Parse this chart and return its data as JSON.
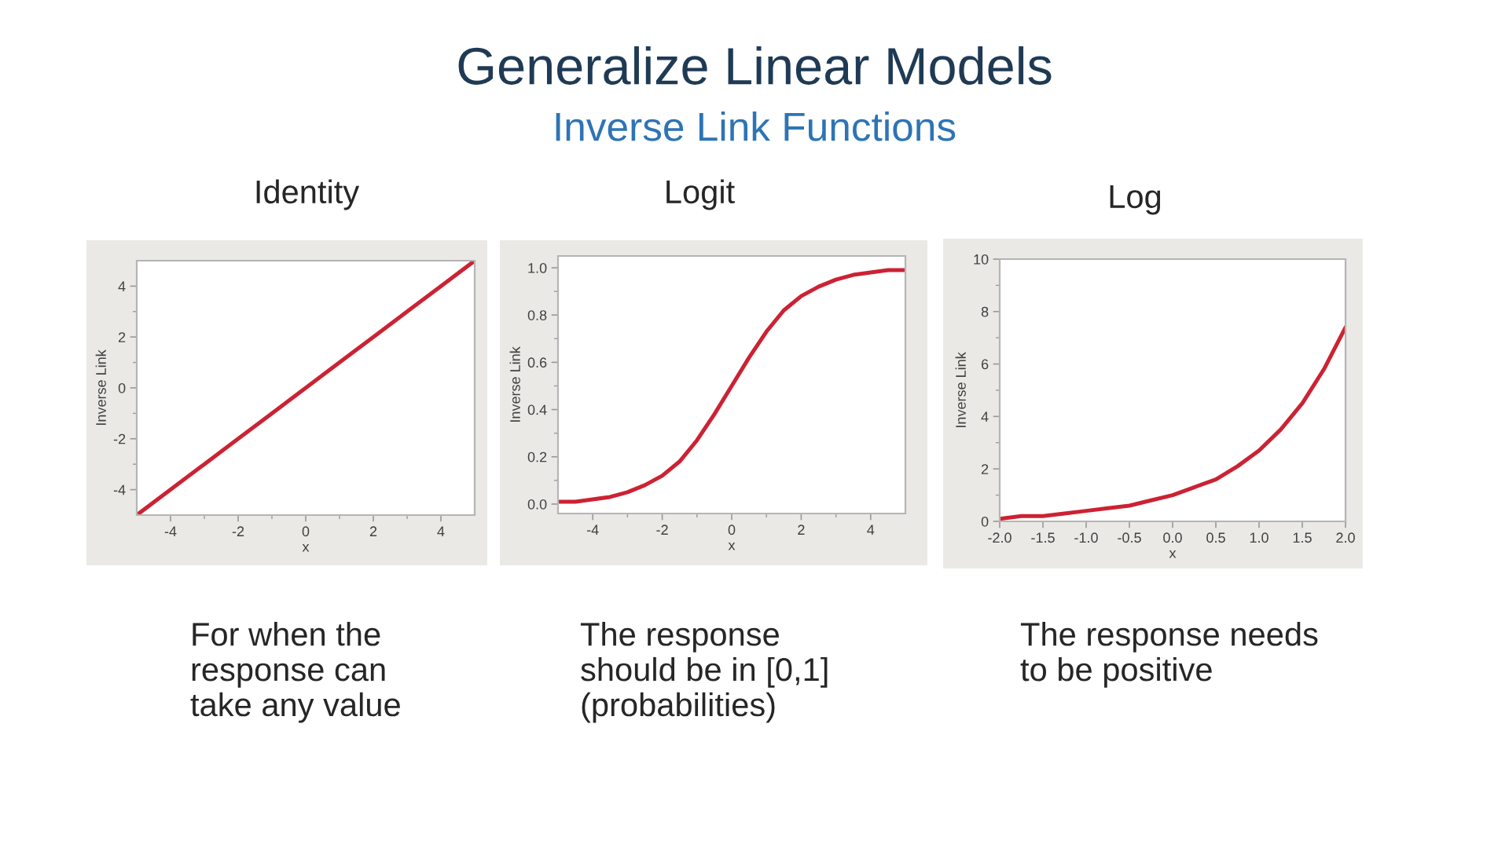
{
  "chart_data": [
    {
      "type": "other",
      "title": "Generalize Linear Models",
      "subtitle": "Inverse Link Functions"
    },
    {
      "type": "line",
      "title": "Identity",
      "xlabel": "x",
      "ylabel": "Inverse Link",
      "color": "#cc2233",
      "x": [
        -5,
        -4,
        -3,
        -2,
        -1,
        0,
        1,
        2,
        3,
        4,
        5
      ],
      "values": [
        -5,
        -4,
        -3,
        -2,
        -1,
        0,
        1,
        2,
        3,
        4,
        5
      ],
      "xlim": [
        -5,
        5
      ],
      "ylim": [
        -5,
        5
      ],
      "xticks": [
        -4,
        -2,
        0,
        2,
        4,
        {
          "value": -3,
          "label": null
        },
        {
          "value": -1,
          "label": null
        },
        {
          "value": 1,
          "label": null
        },
        {
          "value": 3,
          "label": null
        }
      ],
      "yticks": [
        -4,
        -2,
        0,
        2,
        4,
        {
          "value": -3,
          "label": null
        },
        {
          "value": -1,
          "label": null
        },
        {
          "value": 1,
          "label": null
        },
        {
          "value": 3,
          "label": null
        }
      ],
      "annotations": [
        "For when the\nresponse can\ntake any value"
      ]
    },
    {
      "type": "line",
      "title": "Logit",
      "xlabel": "x",
      "ylabel": "Inverse Link",
      "color": "#cc2233",
      "x": [
        -5,
        -4.5,
        -4,
        -3.5,
        -3,
        -2.5,
        -2,
        -1.5,
        -1,
        -0.5,
        0,
        0.5,
        1,
        1.5,
        2,
        2.5,
        3,
        3.5,
        4,
        4.5,
        5
      ],
      "values": [
        0.01,
        0.01,
        0.02,
        0.03,
        0.05,
        0.08,
        0.12,
        0.18,
        0.27,
        0.38,
        0.5,
        0.62,
        0.73,
        0.82,
        0.88,
        0.92,
        0.95,
        0.97,
        0.98,
        0.99,
        0.99
      ],
      "xlim": [
        -5,
        5
      ],
      "ylim": [
        -0.04,
        1.05
      ],
      "xticks": [
        -4,
        -2,
        0,
        2,
        4,
        {
          "value": -3,
          "label": null
        },
        {
          "value": -1,
          "label": null
        },
        {
          "value": 1,
          "label": null
        },
        {
          "value": 3,
          "label": null
        }
      ],
      "yticks": [
        {
          "value": 0,
          "label": "0.0"
        },
        0.2,
        0.4,
        0.6,
        0.8,
        {
          "value": 1,
          "label": "1.0"
        },
        {
          "value": 0.1,
          "label": null
        },
        {
          "value": 0.3,
          "label": null
        },
        {
          "value": 0.5,
          "label": null
        },
        {
          "value": 0.7,
          "label": null
        },
        {
          "value": 0.9,
          "label": null
        }
      ],
      "annotations": [
        "The response\nshould be in [0,1]\n(probabilities)"
      ]
    },
    {
      "type": "line",
      "title": "Log",
      "xlabel": "x",
      "ylabel": "Inverse Link",
      "color": "#cc2233",
      "x": [
        -2,
        -1.75,
        -1.5,
        -1.25,
        -1,
        -0.75,
        -0.5,
        -0.25,
        0,
        0.25,
        0.5,
        0.75,
        1,
        1.25,
        1.5,
        1.75,
        2
      ],
      "values": [
        0.1,
        0.2,
        0.2,
        0.3,
        0.4,
        0.5,
        0.6,
        0.8,
        1.0,
        1.3,
        1.6,
        2.1,
        2.7,
        3.5,
        4.5,
        5.8,
        7.4
      ],
      "xlim": [
        -2,
        2
      ],
      "ylim": [
        0,
        10
      ],
      "xticks": [
        {
          "value": -2,
          "label": "-2.0"
        },
        -1.5,
        {
          "value": -1,
          "label": "-1.0"
        },
        -0.5,
        {
          "value": 0,
          "label": "0.0"
        },
        0.5,
        {
          "value": 1,
          "label": "1.0"
        },
        1.5,
        {
          "value": 2,
          "label": "2.0"
        }
      ],
      "yticks": [
        0,
        2,
        4,
        6,
        8,
        10,
        {
          "value": 1,
          "label": null
        },
        {
          "value": 3,
          "label": null
        },
        {
          "value": 5,
          "label": null
        },
        {
          "value": 7,
          "label": null
        },
        {
          "value": 9,
          "label": null
        }
      ],
      "annotations": [
        "The response needs\nto be positive"
      ]
    }
  ]
}
